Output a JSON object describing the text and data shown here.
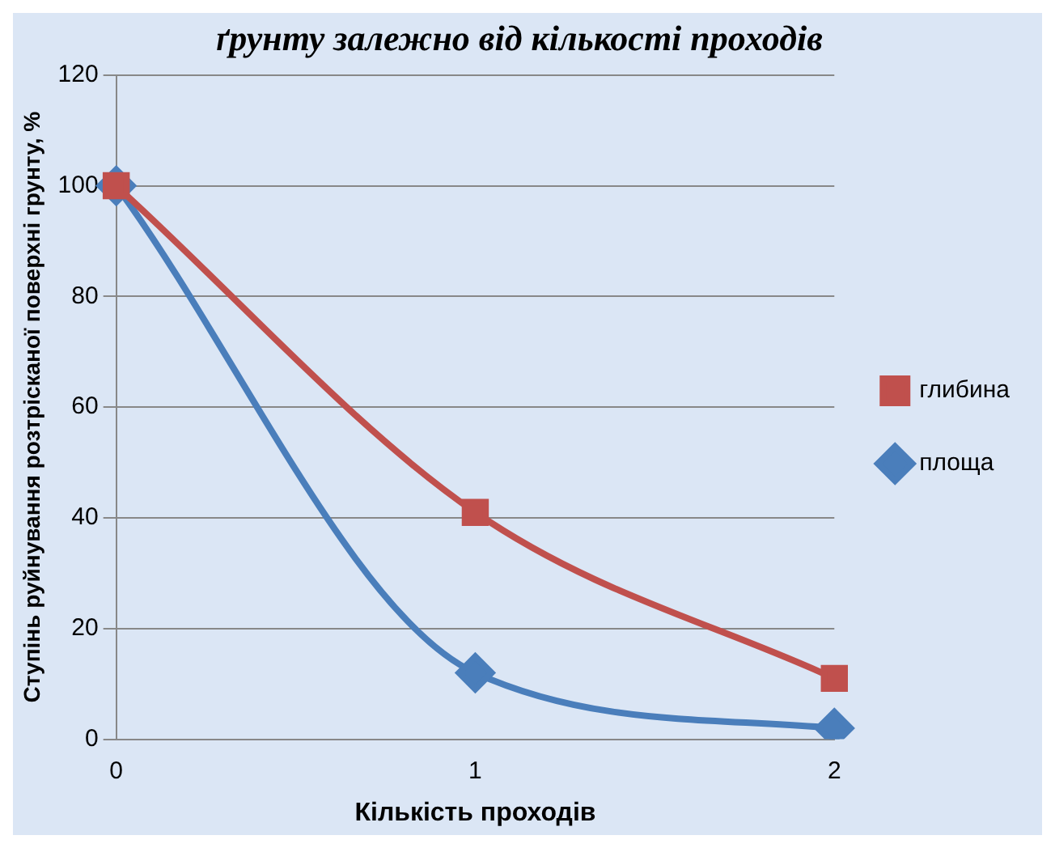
{
  "chart_data": {
    "type": "line",
    "title": "ґрунту залежно від кількості проходів",
    "xlabel": "Кількість проходів",
    "ylabel": "Ступінь руйнування розтрісканої поверхні грунту, %",
    "categories": [
      "0",
      "1",
      "2"
    ],
    "series": [
      {
        "name": "площа",
        "color": "#4a7ebb",
        "values": [
          100,
          12,
          2
        ],
        "marker": "diamond"
      },
      {
        "name": "глибина",
        "color": "#c0504d",
        "values": [
          100,
          41,
          11
        ],
        "marker": "square"
      }
    ],
    "ylim": [
      0,
      120
    ],
    "yticks": [
      0,
      20,
      40,
      60,
      80,
      100,
      120
    ],
    "grid": "y",
    "legend": "right",
    "line_style": "solid"
  }
}
